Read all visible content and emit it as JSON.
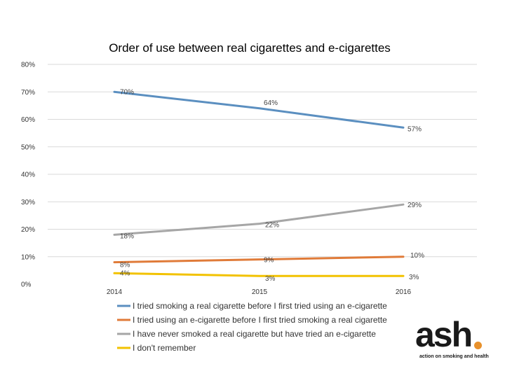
{
  "chart_data": {
    "type": "line",
    "title": "Order of use between real cigarettes and e-cigarettes",
    "categories": [
      "2014",
      "2015",
      "2016"
    ],
    "ylim": [
      0,
      80
    ],
    "yticks": [
      0,
      10,
      20,
      30,
      40,
      50,
      60,
      70,
      80
    ],
    "ytick_labels": [
      "0%",
      "10%",
      "20%",
      "30%",
      "40%",
      "50%",
      "60%",
      "70%",
      "80%"
    ],
    "grid": true,
    "legend_position": "bottom-left",
    "series": [
      {
        "name": "I tried smoking a real cigarette before I first tried using an e-cigarette",
        "values": [
          70,
          64,
          57
        ],
        "labels": [
          "70%",
          "64%",
          "57%"
        ],
        "color": "#5b8fc0"
      },
      {
        "name": "I tried using an e-cigarette before I first tried smoking a real cigarette",
        "values": [
          8,
          9,
          10
        ],
        "labels": [
          "8%",
          "9%",
          "10%"
        ],
        "color": "#e07b39"
      },
      {
        "name": "I have never smoked a real cigarette but have tried an e-cigarette",
        "values": [
          18,
          22,
          29
        ],
        "labels": [
          "18%",
          "22%",
          "29%"
        ],
        "color": "#a6a6a6"
      },
      {
        "name": "I don't remember",
        "values": [
          4,
          3,
          3
        ],
        "labels": [
          "4%",
          "3%",
          "3%"
        ],
        "color": "#f2c200"
      }
    ]
  },
  "logo": {
    "word": "ash",
    "tagline": "action on smoking and health",
    "dot_color": "#e8912c"
  }
}
